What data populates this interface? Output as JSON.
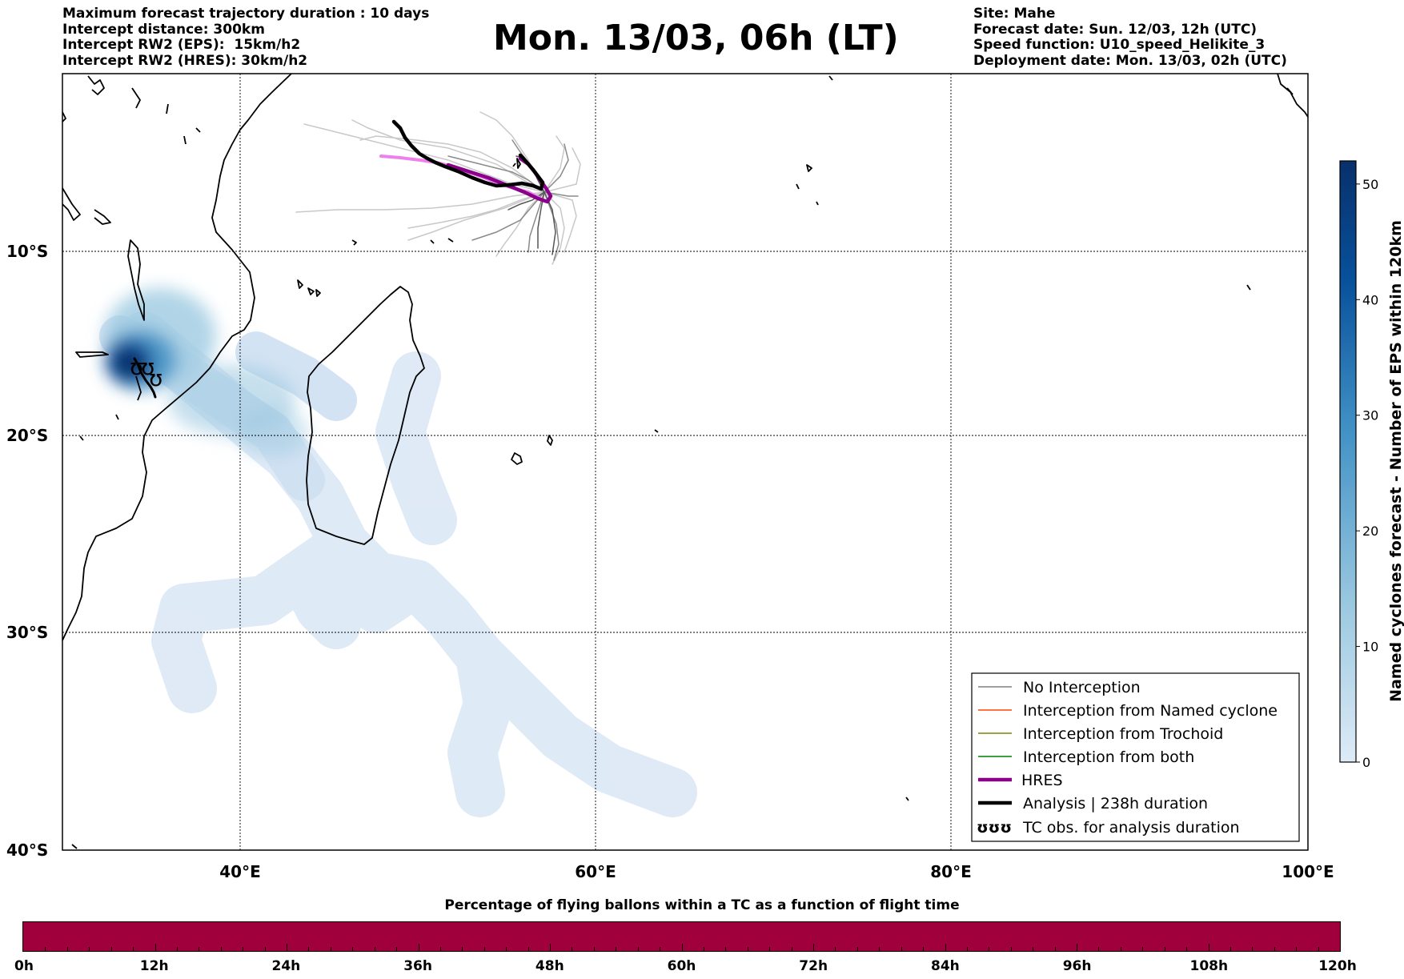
{
  "header": {
    "left_lines": [
      "Maximum forecast trajectory duration : 10 days",
      "Intercept distance: 300km",
      "Intercept RW2 (EPS):  15km/h2",
      "Intercept RW2 (HRES): 30km/h2"
    ],
    "title": "Mon. 13/03, 06h (LT)",
    "right_lines": [
      "Site: Mahe",
      "Forecast date: Sun. 12/03, 12h (UTC)",
      "Speed function: U10_speed_Helikite_3",
      "Deployment date: Mon. 13/03, 02h (UTC)"
    ]
  },
  "map": {
    "lon_ticks": [
      "40°E",
      "60°E",
      "80°E",
      "100°E"
    ],
    "lat_ticks": [
      "10°S",
      "20°S",
      "30°S",
      "40°S"
    ]
  },
  "legend": {
    "items": [
      {
        "label": "No Interception",
        "color": "#808080"
      },
      {
        "label": "Interception from Named cyclone",
        "color": "#ff4500"
      },
      {
        "label": "Interception from Trochoid",
        "color": "#808000"
      },
      {
        "label": "Interception from both",
        "color": "#008000"
      },
      {
        "label": "HRES",
        "color": "#8b008b"
      },
      {
        "label": "Analysis | 238h duration",
        "color": "#000000"
      },
      {
        "label": "TC obs. for analysis duration",
        "color": "#000000",
        "symbol": "ʊʊʊ"
      }
    ]
  },
  "colorbar": {
    "label": "Named cyclones forecast - Number of EPS within 120km",
    "ticks": [
      "0",
      "10",
      "20",
      "30",
      "40",
      "50"
    ],
    "min": 0,
    "max": 52,
    "colors": [
      "#deebf7",
      "#9ecae1",
      "#4292c6",
      "#08519c",
      "#08306b"
    ]
  },
  "timebar": {
    "title": "Percentage of flying ballons within a TC as a function of flight time",
    "labels": [
      "0h",
      "12h",
      "24h",
      "36h",
      "48h",
      "60h",
      "72h",
      "84h",
      "96h",
      "108h",
      "120h"
    ],
    "fill_color": "#a0003c"
  }
}
